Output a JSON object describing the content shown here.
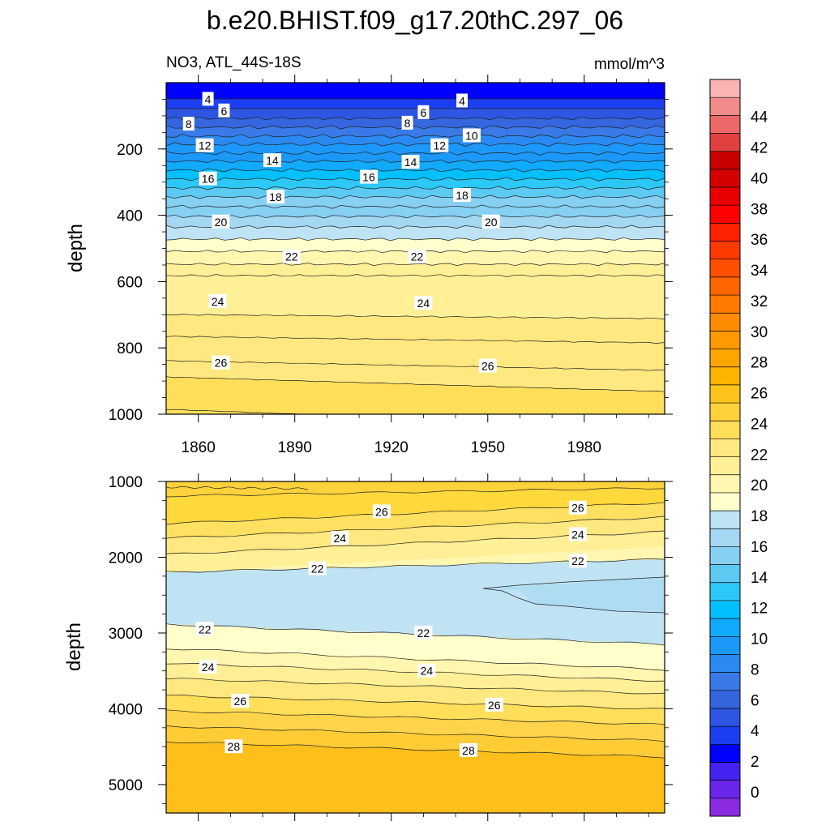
{
  "chart_data": {
    "type": "heatmap",
    "title": "b.e20.BHIST.f09_g17.20thC.297_06",
    "variable_label": "NO3, ATL_44S-18S",
    "units": "mmol/m^3",
    "ylabel": "depth",
    "x_ticks": [
      "1860",
      "1890",
      "1920",
      "1950",
      "1980"
    ],
    "x_range": [
      1850,
      2005
    ],
    "colorbar": {
      "levels": [
        0,
        2,
        4,
        6,
        8,
        10,
        12,
        14,
        16,
        18,
        20,
        22,
        24,
        26,
        28,
        30,
        32,
        34,
        36,
        38,
        40,
        42,
        44
      ],
      "tick_labels": [
        "0",
        "2",
        "4",
        "6",
        "8",
        "10",
        "12",
        "14",
        "16",
        "18",
        "20",
        "22",
        "24",
        "26",
        "28",
        "30",
        "32",
        "34",
        "36",
        "38",
        "40",
        "42",
        "44"
      ],
      "colors": [
        "#8a2be2",
        "#6a25ea",
        "#4422f0",
        "#0000ff",
        "#1a3ef0",
        "#2f55e3",
        "#3566de",
        "#3a7ae8",
        "#2a8af2",
        "#1c98fa",
        "#10aaff",
        "#00c0ff",
        "#2cc8f8",
        "#5ccaf3",
        "#86d0f2",
        "#a4d8f2",
        "#bde3f4",
        "#ffffcc",
        "#fff6b0",
        "#fff098",
        "#ffe880",
        "#ffde5a",
        "#ffd23c",
        "#ffc41c",
        "#ffb400",
        "#ffa500",
        "#ff9a00",
        "#ff8c00",
        "#ff7a00",
        "#ff6600",
        "#ff5000",
        "#ff3a00",
        "#ff2200",
        "#ff0000",
        "#e80000",
        "#d40000",
        "#c80000",
        "#e04040",
        "#ec6868",
        "#f28a8a",
        "#fbb4b4"
      ]
    },
    "panels": [
      {
        "name": "upper",
        "y_ticks": [
          "200",
          "400",
          "600",
          "800",
          "1000"
        ],
        "y_range": [
          0,
          1000
        ],
        "contour_labels": [
          {
            "text": "4",
            "year": 1863,
            "depth": 50
          },
          {
            "text": "4",
            "year": 1942,
            "depth": 55
          },
          {
            "text": "6",
            "year": 1868,
            "depth": 85
          },
          {
            "text": "6",
            "year": 1930,
            "depth": 90
          },
          {
            "text": "8",
            "year": 1857,
            "depth": 125
          },
          {
            "text": "8",
            "year": 1925,
            "depth": 122
          },
          {
            "text": "10",
            "year": 1945,
            "depth": 160
          },
          {
            "text": "12",
            "year": 1862,
            "depth": 190
          },
          {
            "text": "12",
            "year": 1935,
            "depth": 190
          },
          {
            "text": "14",
            "year": 1883,
            "depth": 235
          },
          {
            "text": "14",
            "year": 1926,
            "depth": 240
          },
          {
            "text": "16",
            "year": 1863,
            "depth": 290
          },
          {
            "text": "16",
            "year": 1913,
            "depth": 285
          },
          {
            "text": "18",
            "year": 1884,
            "depth": 345
          },
          {
            "text": "18",
            "year": 1942,
            "depth": 340
          },
          {
            "text": "20",
            "year": 1867,
            "depth": 420
          },
          {
            "text": "20",
            "year": 1951,
            "depth": 420
          },
          {
            "text": "22",
            "year": 1889,
            "depth": 525
          },
          {
            "text": "22",
            "year": 1928,
            "depth": 525
          },
          {
            "text": "24",
            "year": 1866,
            "depth": 660
          },
          {
            "text": "24",
            "year": 1930,
            "depth": 665
          },
          {
            "text": "26",
            "year": 1867,
            "depth": 845
          },
          {
            "text": "26",
            "year": 1950,
            "depth": 855
          }
        ]
      },
      {
        "name": "lower",
        "y_ticks": [
          "1000",
          "2000",
          "3000",
          "4000",
          "5000"
        ],
        "y_range": [
          1000,
          5375
        ],
        "contour_labels": [
          {
            "text": "26",
            "year": 1917,
            "depth": 1400
          },
          {
            "text": "26",
            "year": 1978,
            "depth": 1350
          },
          {
            "text": "24",
            "year": 1904,
            "depth": 1750
          },
          {
            "text": "24",
            "year": 1978,
            "depth": 1700
          },
          {
            "text": "22",
            "year": 1897,
            "depth": 2150
          },
          {
            "text": "22",
            "year": 1978,
            "depth": 2050
          },
          {
            "text": "22",
            "year": 1862,
            "depth": 2950
          },
          {
            "text": "22",
            "year": 1930,
            "depth": 3000
          },
          {
            "text": "24",
            "year": 1863,
            "depth": 3450
          },
          {
            "text": "24",
            "year": 1931,
            "depth": 3500
          },
          {
            "text": "26",
            "year": 1873,
            "depth": 3900
          },
          {
            "text": "26",
            "year": 1952,
            "depth": 3950
          },
          {
            "text": "28",
            "year": 1871,
            "depth": 4500
          },
          {
            "text": "28",
            "year": 1944,
            "depth": 4550
          }
        ]
      }
    ]
  }
}
